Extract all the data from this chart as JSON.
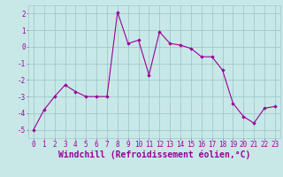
{
  "x": [
    0,
    1,
    2,
    3,
    4,
    5,
    6,
    7,
    8,
    9,
    10,
    11,
    12,
    13,
    14,
    15,
    16,
    17,
    18,
    19,
    20,
    21,
    22,
    23
  ],
  "y": [
    -5.0,
    -3.8,
    -3.0,
    -2.3,
    -2.7,
    -3.0,
    -3.0,
    -3.0,
    2.1,
    0.2,
    0.4,
    -1.7,
    0.9,
    0.2,
    0.1,
    -0.1,
    -0.6,
    -0.6,
    -1.4,
    -3.4,
    -4.2,
    -4.6,
    -3.7,
    -3.6
  ],
  "line_color": "#990099",
  "marker_color": "#990099",
  "bg_color": "#c8e8e8",
  "grid_color": "#a0c8c8",
  "xlabel": "Windchill (Refroidissement éolien,°C)",
  "xlabel_color": "#990099",
  "ylim": [
    -5.5,
    2.5
  ],
  "xlim": [
    -0.5,
    23.5
  ],
  "yticks": [
    -5,
    -4,
    -3,
    -2,
    -1,
    0,
    1,
    2
  ],
  "xticks": [
    0,
    1,
    2,
    3,
    4,
    5,
    6,
    7,
    8,
    9,
    10,
    11,
    12,
    13,
    14,
    15,
    16,
    17,
    18,
    19,
    20,
    21,
    22,
    23
  ],
  "tick_color": "#990099",
  "tick_fontsize": 5.5,
  "xlabel_fontsize": 7.0,
  "linewidth": 0.8,
  "markersize": 1.8
}
